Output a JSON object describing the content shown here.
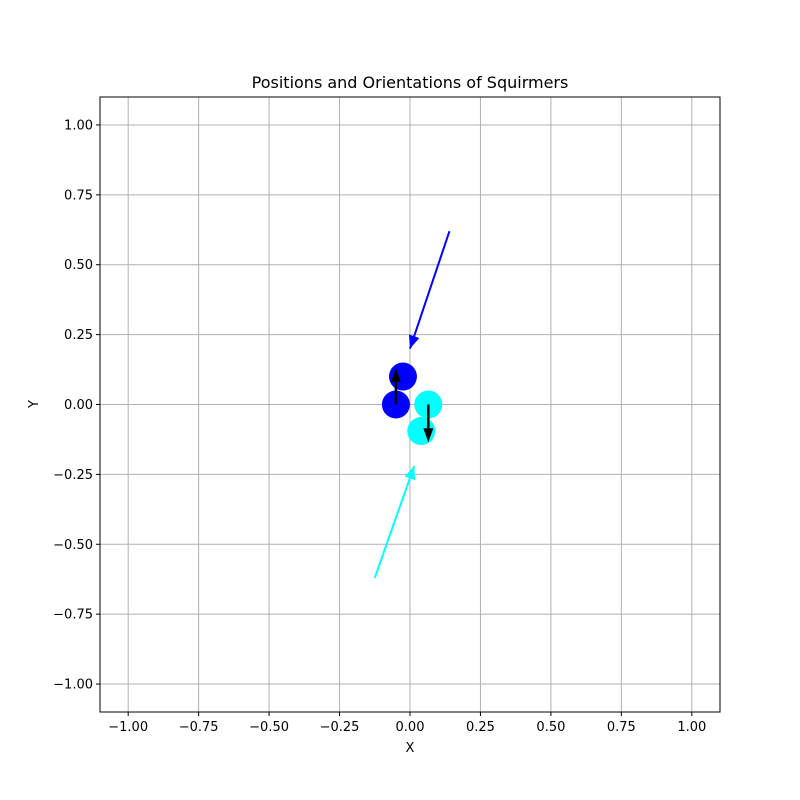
{
  "chart_data": {
    "type": "scatter",
    "title": "Positions and Orientations of Squirmers",
    "xlabel": "X",
    "ylabel": "Y",
    "xlim": [
      -1.1,
      1.1
    ],
    "ylim": [
      -1.1,
      1.1
    ],
    "grid": true,
    "xticks": [
      -1.0,
      -0.75,
      -0.5,
      -0.25,
      0.0,
      0.25,
      0.5,
      0.75,
      1.0
    ],
    "xtick_labels": [
      "−1.00",
      "−0.75",
      "−0.50",
      "−0.25",
      "0.00",
      "0.25",
      "0.50",
      "0.75",
      "1.00"
    ],
    "yticks": [
      1.0,
      0.75,
      0.5,
      0.25,
      0.0,
      -0.25,
      -0.5,
      -0.75,
      -1.0
    ],
    "ytick_labels": [
      "1.00",
      "0.75",
      "0.50",
      "0.25",
      "0.00",
      "−0.25",
      "−0.50",
      "−0.75",
      "−1.00"
    ],
    "squirmers": [
      {
        "color": "#0000ff",
        "x": -0.05,
        "y": 0.0
      },
      {
        "color": "#0000ff",
        "x": -0.025,
        "y": 0.1
      },
      {
        "color": "#00ffff",
        "x": 0.065,
        "y": 0.0
      },
      {
        "color": "#00ffff",
        "x": 0.04,
        "y": -0.095
      }
    ],
    "trajectories": [
      {
        "color": "#0000ff",
        "points": [
          [
            0.14,
            0.62
          ],
          [
            0.0,
            0.2
          ]
        ]
      },
      {
        "color": "#00ffff",
        "points": [
          [
            -0.125,
            -0.62
          ],
          [
            0.015,
            -0.22
          ]
        ]
      }
    ],
    "orientation_arrows": [
      {
        "color": "#000000",
        "x": -0.05,
        "y": 0.0,
        "dx": 0.0,
        "dy": 0.13
      },
      {
        "color": "#000000",
        "x": 0.065,
        "y": 0.0,
        "dx": 0.0,
        "dy": -0.135
      }
    ]
  }
}
